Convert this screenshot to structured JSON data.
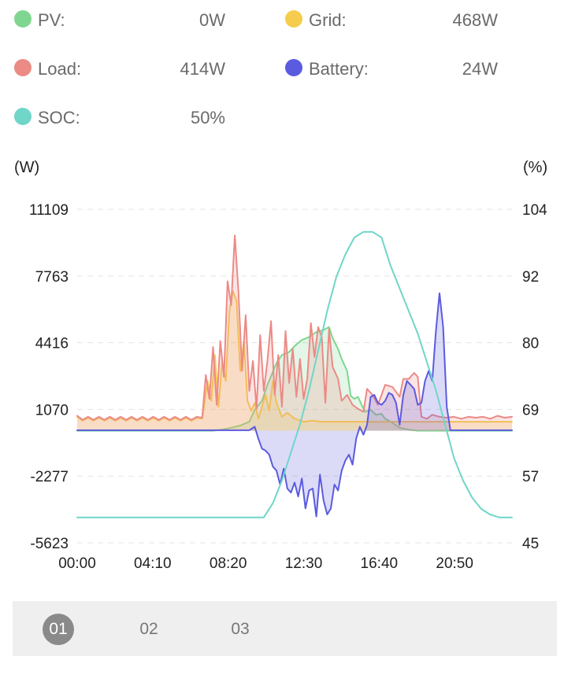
{
  "legend": [
    {
      "name": "PV:",
      "value": "0W",
      "color": "#7fd690"
    },
    {
      "name": "Grid:",
      "value": "468W",
      "color": "#f5cc4d"
    },
    {
      "name": "Load:",
      "value": "414W",
      "color": "#ec8a86"
    },
    {
      "name": "Battery:",
      "value": "24W",
      "color": "#5b5be0"
    },
    {
      "name": "SOC:",
      "value": "50%",
      "color": "#6fd6c8"
    }
  ],
  "tabs": [
    {
      "label": "01",
      "active": true
    },
    {
      "label": "02",
      "active": false
    },
    {
      "label": "03",
      "active": false
    }
  ],
  "chart_data": {
    "type": "area",
    "left_unit": "(W)",
    "right_unit": "(%)",
    "left_ticks": [
      11109,
      7763,
      4416,
      1070,
      -2277,
      -5623
    ],
    "right_ticks": [
      104,
      92,
      80,
      69,
      57,
      45
    ],
    "x_ticks": [
      "00:00",
      "04:10",
      "08:20",
      "12:30",
      "16:40",
      "20:50"
    ],
    "left_range": [
      -5623,
      11109
    ],
    "right_range": [
      45,
      104
    ],
    "x_range_hours": [
      0,
      24
    ],
    "grid": "dashed-horizontal",
    "series": [
      {
        "name": "PV",
        "axis": "left",
        "color": "#7fd690",
        "fill": true,
        "points": [
          [
            0,
            0
          ],
          [
            7.5,
            0
          ],
          [
            8.0,
            60
          ],
          [
            8.5,
            150
          ],
          [
            9.0,
            260
          ],
          [
            9.5,
            450
          ],
          [
            9.8,
            1050
          ],
          [
            10.2,
            1500
          ],
          [
            10.5,
            2300
          ],
          [
            10.8,
            2950
          ],
          [
            11.0,
            3400
          ],
          [
            11.3,
            3800
          ],
          [
            11.7,
            3950
          ],
          [
            12.0,
            4250
          ],
          [
            12.4,
            4550
          ],
          [
            12.8,
            4700
          ],
          [
            13.2,
            4950
          ],
          [
            13.6,
            5050
          ],
          [
            13.9,
            5200
          ],
          [
            14.1,
            4650
          ],
          [
            14.4,
            4100
          ],
          [
            14.6,
            3600
          ],
          [
            14.9,
            3000
          ],
          [
            15.1,
            1750
          ],
          [
            15.3,
            1600
          ],
          [
            15.5,
            1700
          ],
          [
            15.7,
            1300
          ],
          [
            15.9,
            950
          ],
          [
            16.2,
            1050
          ],
          [
            16.5,
            800
          ],
          [
            16.8,
            850
          ],
          [
            17.0,
            600
          ],
          [
            17.4,
            400
          ],
          [
            17.8,
            150
          ],
          [
            18.3,
            50
          ],
          [
            18.8,
            0
          ],
          [
            24,
            0
          ]
        ]
      },
      {
        "name": "Grid",
        "axis": "left",
        "color": "#f5cc4d",
        "fill": true,
        "points": [
          [
            0,
            700
          ],
          [
            0.3,
            500
          ],
          [
            0.6,
            650
          ],
          [
            0.9,
            500
          ],
          [
            1.2,
            650
          ],
          [
            1.5,
            500
          ],
          [
            1.8,
            650
          ],
          [
            2.1,
            500
          ],
          [
            2.4,
            650
          ],
          [
            2.7,
            500
          ],
          [
            3.0,
            650
          ],
          [
            3.3,
            500
          ],
          [
            3.6,
            650
          ],
          [
            3.9,
            500
          ],
          [
            4.2,
            650
          ],
          [
            4.5,
            500
          ],
          [
            4.8,
            650
          ],
          [
            5.1,
            500
          ],
          [
            5.4,
            650
          ],
          [
            5.7,
            500
          ],
          [
            6.0,
            650
          ],
          [
            6.3,
            500
          ],
          [
            6.6,
            650
          ],
          [
            6.9,
            600
          ],
          [
            7.2,
            2500
          ],
          [
            7.4,
            1500
          ],
          [
            7.6,
            3800
          ],
          [
            7.8,
            1200
          ],
          [
            8.0,
            3500
          ],
          [
            8.2,
            2500
          ],
          [
            8.4,
            6000
          ],
          [
            8.6,
            7000
          ],
          [
            8.8,
            6500
          ],
          [
            9.0,
            3000
          ],
          [
            9.2,
            4500
          ],
          [
            9.4,
            1500
          ],
          [
            9.6,
            1000
          ],
          [
            9.8,
            1400
          ],
          [
            10.0,
            600
          ],
          [
            10.2,
            1200
          ],
          [
            10.4,
            1800
          ],
          [
            10.6,
            1000
          ],
          [
            10.8,
            2500
          ],
          [
            11.0,
            1400
          ],
          [
            11.3,
            700
          ],
          [
            11.6,
            900
          ],
          [
            12.0,
            600
          ],
          [
            12.5,
            450
          ],
          [
            13.0,
            500
          ],
          [
            13.5,
            450
          ],
          [
            14.0,
            450
          ],
          [
            15.0,
            450
          ],
          [
            16.0,
            450
          ],
          [
            17.0,
            450
          ],
          [
            18.0,
            450
          ],
          [
            19.0,
            450
          ],
          [
            20.0,
            450
          ],
          [
            21.0,
            450
          ],
          [
            22.0,
            450
          ],
          [
            23.0,
            450
          ],
          [
            24,
            450
          ]
        ]
      },
      {
        "name": "Load",
        "axis": "left",
        "color": "#ec8a86",
        "fill": true,
        "points": [
          [
            0,
            750
          ],
          [
            0.3,
            550
          ],
          [
            0.6,
            700
          ],
          [
            0.9,
            550
          ],
          [
            1.2,
            700
          ],
          [
            1.5,
            550
          ],
          [
            1.8,
            700
          ],
          [
            2.1,
            550
          ],
          [
            2.4,
            700
          ],
          [
            2.7,
            550
          ],
          [
            3.0,
            700
          ],
          [
            3.3,
            550
          ],
          [
            3.6,
            700
          ],
          [
            3.9,
            550
          ],
          [
            4.2,
            700
          ],
          [
            4.5,
            550
          ],
          [
            4.8,
            700
          ],
          [
            5.1,
            550
          ],
          [
            5.4,
            700
          ],
          [
            5.7,
            550
          ],
          [
            6.0,
            700
          ],
          [
            6.3,
            550
          ],
          [
            6.6,
            700
          ],
          [
            6.9,
            650
          ],
          [
            7.1,
            2800
          ],
          [
            7.3,
            1600
          ],
          [
            7.5,
            4200
          ],
          [
            7.7,
            1300
          ],
          [
            7.9,
            4500
          ],
          [
            8.1,
            2700
          ],
          [
            8.3,
            7500
          ],
          [
            8.5,
            6300
          ],
          [
            8.7,
            9800
          ],
          [
            8.9,
            7000
          ],
          [
            9.1,
            3000
          ],
          [
            9.3,
            5800
          ],
          [
            9.5,
            2000
          ],
          [
            9.7,
            3500
          ],
          [
            9.9,
            1100
          ],
          [
            10.1,
            4800
          ],
          [
            10.3,
            2000
          ],
          [
            10.5,
            3500
          ],
          [
            10.7,
            5500
          ],
          [
            10.9,
            1800
          ],
          [
            11.1,
            3800
          ],
          [
            11.3,
            1200
          ],
          [
            11.5,
            5000
          ],
          [
            11.7,
            2400
          ],
          [
            11.9,
            4100
          ],
          [
            12.1,
            1700
          ],
          [
            12.3,
            3600
          ],
          [
            12.5,
            1600
          ],
          [
            12.7,
            2600
          ],
          [
            12.9,
            5400
          ],
          [
            13.1,
            3700
          ],
          [
            13.3,
            5200
          ],
          [
            13.5,
            4700
          ],
          [
            13.7,
            1400
          ],
          [
            13.9,
            5100
          ],
          [
            14.1,
            3200
          ],
          [
            14.4,
            2600
          ],
          [
            14.6,
            1500
          ],
          [
            14.9,
            1800
          ],
          [
            15.2,
            1300
          ],
          [
            15.5,
            1100
          ],
          [
            15.8,
            950
          ],
          [
            16.0,
            2100
          ],
          [
            16.3,
            1800
          ],
          [
            16.6,
            1300
          ],
          [
            17.0,
            2300
          ],
          [
            17.4,
            2200
          ],
          [
            17.8,
            1700
          ],
          [
            18.0,
            2600
          ],
          [
            18.3,
            2600
          ],
          [
            18.6,
            2900
          ],
          [
            18.8,
            2700
          ],
          [
            19.0,
            700
          ],
          [
            19.3,
            600
          ],
          [
            19.6,
            800
          ],
          [
            20.0,
            700
          ],
          [
            20.4,
            650
          ],
          [
            20.8,
            700
          ],
          [
            21.2,
            600
          ],
          [
            21.6,
            700
          ],
          [
            22.0,
            650
          ],
          [
            22.4,
            700
          ],
          [
            22.8,
            600
          ],
          [
            23.2,
            750
          ],
          [
            23.6,
            650
          ],
          [
            24,
            700
          ]
        ]
      },
      {
        "name": "Battery",
        "axis": "left",
        "color": "#5b5be0",
        "fill": true,
        "points": [
          [
            0,
            24
          ],
          [
            9.5,
            24
          ],
          [
            9.8,
            200
          ],
          [
            10.0,
            -400
          ],
          [
            10.2,
            -900
          ],
          [
            10.4,
            -1000
          ],
          [
            10.6,
            -1200
          ],
          [
            10.8,
            -1800
          ],
          [
            11.0,
            -2000
          ],
          [
            11.2,
            -2700
          ],
          [
            11.4,
            -1900
          ],
          [
            11.6,
            -2900
          ],
          [
            11.8,
            -3100
          ],
          [
            12.0,
            -2600
          ],
          [
            12.2,
            -3300
          ],
          [
            12.4,
            -2400
          ],
          [
            12.6,
            -3900
          ],
          [
            12.8,
            -3000
          ],
          [
            13.0,
            -2900
          ],
          [
            13.2,
            -4300
          ],
          [
            13.4,
            -2200
          ],
          [
            13.6,
            -3500
          ],
          [
            13.8,
            -4200
          ],
          [
            14.0,
            -3900
          ],
          [
            14.2,
            -2700
          ],
          [
            14.4,
            -3000
          ],
          [
            14.6,
            -2000
          ],
          [
            14.8,
            -1500
          ],
          [
            15.0,
            -1200
          ],
          [
            15.2,
            -1700
          ],
          [
            15.4,
            -400
          ],
          [
            15.6,
            200
          ],
          [
            15.8,
            -200
          ],
          [
            16.0,
            300
          ],
          [
            16.2,
            1700
          ],
          [
            16.4,
            1800
          ],
          [
            16.6,
            1400
          ],
          [
            16.8,
            1300
          ],
          [
            17.0,
            1500
          ],
          [
            17.2,
            1900
          ],
          [
            17.4,
            1800
          ],
          [
            17.6,
            1400
          ],
          [
            17.8,
            300
          ],
          [
            18.0,
            1800
          ],
          [
            18.2,
            2500
          ],
          [
            18.4,
            2300
          ],
          [
            18.6,
            2100
          ],
          [
            18.8,
            1300
          ],
          [
            19.0,
            1400
          ],
          [
            19.2,
            2500
          ],
          [
            19.4,
            3000
          ],
          [
            19.6,
            2500
          ],
          [
            19.8,
            5000
          ],
          [
            20.0,
            6900
          ],
          [
            20.2,
            5200
          ],
          [
            20.4,
            1200
          ],
          [
            20.6,
            24
          ],
          [
            24,
            24
          ]
        ]
      },
      {
        "name": "SOC",
        "axis": "right",
        "color": "#6fd6c8",
        "fill": false,
        "points": [
          [
            0,
            49.5
          ],
          [
            9.7,
            49.5
          ],
          [
            10.3,
            49.5
          ],
          [
            10.8,
            52
          ],
          [
            11.3,
            56
          ],
          [
            11.8,
            61
          ],
          [
            12.3,
            66
          ],
          [
            12.8,
            72
          ],
          [
            13.3,
            79
          ],
          [
            13.8,
            86
          ],
          [
            14.3,
            92
          ],
          [
            14.8,
            96
          ],
          [
            15.3,
            99
          ],
          [
            15.8,
            100
          ],
          [
            16.3,
            100
          ],
          [
            16.8,
            99
          ],
          [
            17.3,
            94
          ],
          [
            17.8,
            90
          ],
          [
            18.3,
            86
          ],
          [
            18.8,
            82
          ],
          [
            19.3,
            77
          ],
          [
            19.8,
            72
          ],
          [
            20.3,
            66
          ],
          [
            20.8,
            60
          ],
          [
            21.3,
            56
          ],
          [
            21.8,
            53
          ],
          [
            22.3,
            51
          ],
          [
            22.8,
            50
          ],
          [
            23.3,
            49.5
          ],
          [
            24,
            49.5
          ]
        ]
      }
    ]
  }
}
